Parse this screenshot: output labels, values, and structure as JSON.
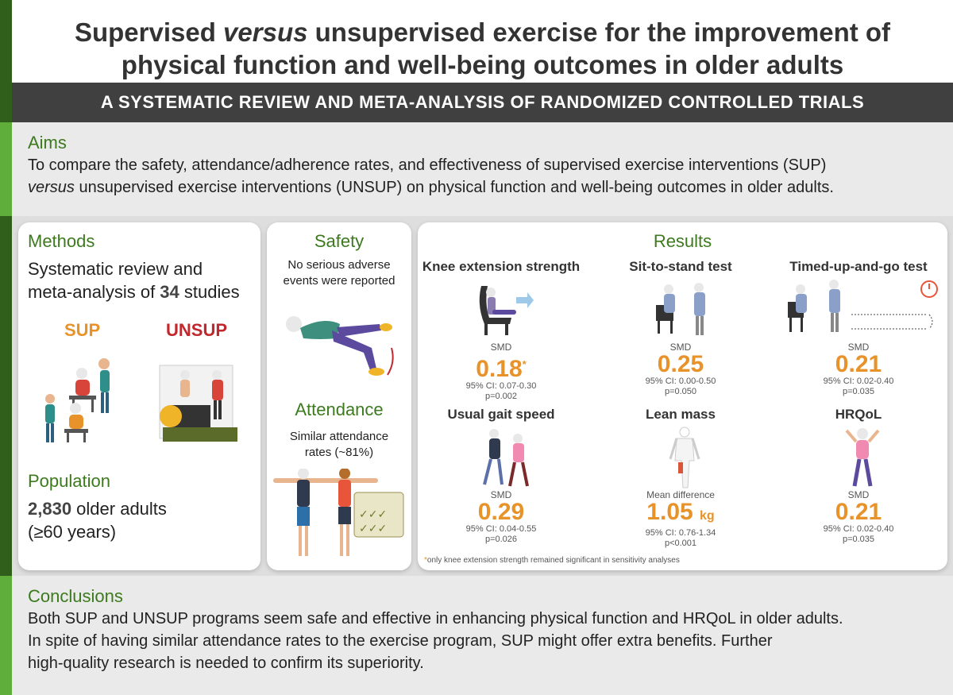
{
  "title": {
    "line1_pre": "Supervised ",
    "line1_em": "versus",
    "line1_post": " unsupervised exercise for the improvement of",
    "line2": "physical function and well-being outcomes in older adults"
  },
  "subtitle": "A SYSTEMATIC REVIEW AND META-ANALYSIS OF RANDOMIZED CONTROLLED TRIALS",
  "aims": {
    "heading": "Aims",
    "text_pre": "To compare the safety, attendance/adherence rates, and effectiveness of supervised exercise interventions (SUP)",
    "text_em": "versus",
    "text_post": " unsupervised exercise interventions (UNSUP) on physical function and well-being outcomes in older adults."
  },
  "methods": {
    "heading": "Methods",
    "line1": "Systematic review and",
    "line2_pre": "meta-analysis of ",
    "line2_num": "34",
    "line2_post": " studies",
    "sup_label": "SUP",
    "unsup_label": "UNSUP"
  },
  "population": {
    "heading": "Population",
    "num": "2,830",
    "text": " older adults",
    "age": "(≥60 years)"
  },
  "safety": {
    "heading": "Safety",
    "text1": "No serious adverse",
    "text2": "events were reported"
  },
  "attendance": {
    "heading": "Attendance",
    "text1": "Similar attendance",
    "text2": "rates (~81%)"
  },
  "results": {
    "heading": "Results",
    "items": [
      {
        "title": "Knee extension strength",
        "label": "SMD",
        "value": "0.18",
        "mark": "*",
        "ci": "95% CI: 0.07-0.30",
        "p": "p=0.002"
      },
      {
        "title": "Sit-to-stand test",
        "label": "SMD",
        "value": "0.25",
        "ci": "95% CI: 0.00-0.50",
        "p": "p=0.050"
      },
      {
        "title": "Timed-up-and-go test",
        "label": "SMD",
        "value": "0.21",
        "ci": "95% CI: 0.02-0.40",
        "p": "p=0.035"
      },
      {
        "title": "Usual gait speed",
        "label": "SMD",
        "value": "0.29",
        "ci": "95% CI: 0.04-0.55",
        "p": "p=0.026"
      },
      {
        "title": "Lean mass",
        "label": "Mean difference",
        "value": "1.05",
        "unit": "kg",
        "ci": "95% CI: 0.76-1.34",
        "p": "p<0.001"
      },
      {
        "title": "HRQoL",
        "label": "SMD",
        "value": "0.21",
        "ci": "95% CI: 0.02-0.40",
        "p": "p=0.035"
      }
    ],
    "footnote_mark": "*",
    "footnote": "only knee extension strength remained significant in sensitivity analyses"
  },
  "conclusions": {
    "heading": "Conclusions",
    "line1": "Both SUP and UNSUP programs seem safe and effective in enhancing physical function and HRQoL in older adults.",
    "line2": "In spite of having similar attendance rates to the exercise program, SUP might offer extra benefits. Further",
    "line3": "high-quality research is needed to confirm its superiority."
  },
  "colors": {
    "green_dark": "#2f5f1a",
    "green_light": "#5fae3c",
    "heading_green": "#3d7a1e",
    "orange": "#e8922a",
    "red": "#c0282d"
  }
}
